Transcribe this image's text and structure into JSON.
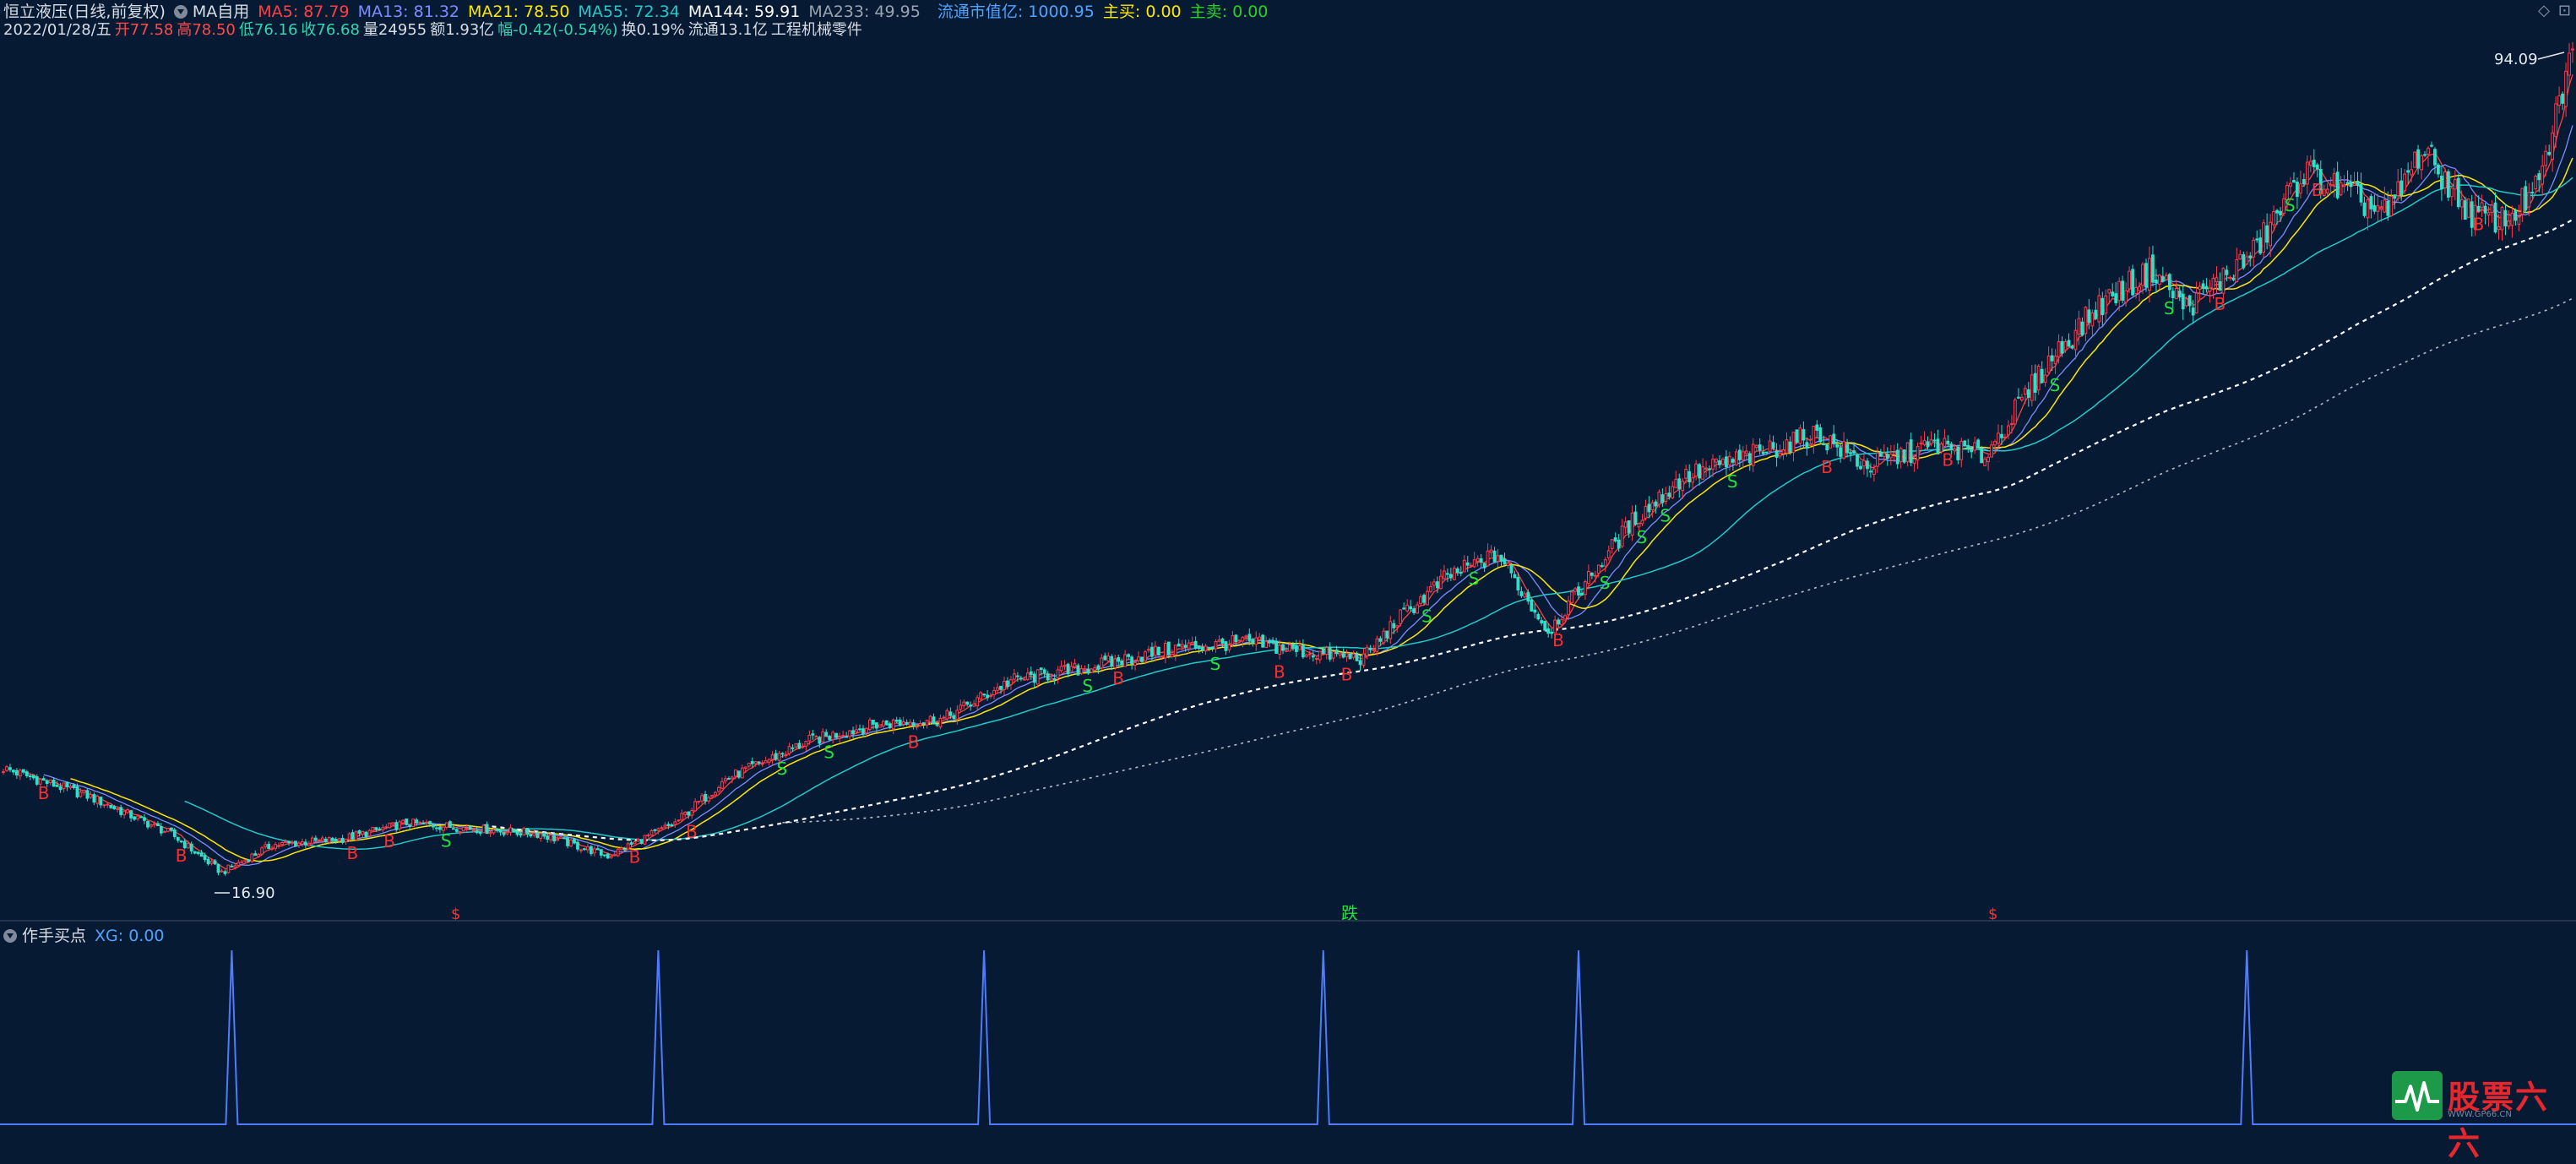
{
  "header": {
    "stock_name": "恒立液压(日线,前复权)",
    "indicator_name": "MA自用",
    "ma_items": [
      {
        "label": "MA5:",
        "value": "87.79",
        "color": "#ff4040"
      },
      {
        "label": "MA13:",
        "value": "81.32",
        "color": "#7f8cff"
      },
      {
        "label": "MA21:",
        "value": "78.50",
        "color": "#ffe600"
      },
      {
        "label": "MA55:",
        "value": "72.34",
        "color": "#23c8c8"
      },
      {
        "label": "MA144:",
        "value": "59.91",
        "color": "#ffffff"
      },
      {
        "label": "MA233:",
        "value": "49.95",
        "color": "#9aa3b0"
      }
    ],
    "market_cap_label": "流通市值亿:",
    "market_cap_value": "1000.95",
    "buy_label": "主买:",
    "buy_value": "0.00",
    "sell_label": "主卖:",
    "sell_value": "0.00"
  },
  "quote": {
    "date": "2022/01/28/五",
    "open": "开77.58",
    "high": "高78.50",
    "low": "低76.16",
    "close": "收76.68",
    "volume": "量24955",
    "amount": "额1.93亿",
    "change": "幅-0.42(-0.54%)",
    "turnover": "换0.19%",
    "float": "流通13.1亿",
    "industry": "工程机械零件"
  },
  "window_controls": {
    "diamond": "◇",
    "restore": "⊡"
  },
  "main_chart_labels": {
    "max_price": "94.09",
    "min_price": "16.90",
    "bottom_marks": [
      "$",
      "跌",
      "$"
    ]
  },
  "sub_panel": {
    "name": "作手买点",
    "xg_label": "XG:",
    "xg_value": "0.00"
  },
  "watermark": {
    "text": "股票六六",
    "sub": "WWW.GP66.CN"
  },
  "chart_data": [
    {
      "type": "candlestick",
      "title": "恒立液压(日线,前复权)",
      "y_range": [
        16.9,
        94.09
      ],
      "anchors": [
        {
          "bar": 0,
          "close": 28.5
        },
        {
          "bar": 25,
          "close": 26.0
        },
        {
          "bar": 50,
          "close": 22.5
        },
        {
          "bar": 65,
          "close": 19.0
        },
        {
          "bar": 80,
          "close": 21.5
        },
        {
          "bar": 100,
          "close": 22.0
        },
        {
          "bar": 120,
          "close": 23.5
        },
        {
          "bar": 140,
          "close": 23.0
        },
        {
          "bar": 160,
          "close": 22.5
        },
        {
          "bar": 180,
          "close": 20.5
        },
        {
          "bar": 200,
          "close": 23.5
        },
        {
          "bar": 215,
          "close": 27.5
        },
        {
          "bar": 240,
          "close": 31.0
        },
        {
          "bar": 260,
          "close": 32.5
        },
        {
          "bar": 280,
          "close": 33.0
        },
        {
          "bar": 300,
          "close": 36.5
        },
        {
          "bar": 320,
          "close": 37.5
        },
        {
          "bar": 350,
          "close": 39.5
        },
        {
          "bar": 370,
          "close": 40.0
        },
        {
          "bar": 390,
          "close": 39.0
        },
        {
          "bar": 405,
          "close": 38.5
        },
        {
          "bar": 415,
          "close": 42.0
        },
        {
          "bar": 430,
          "close": 46.0
        },
        {
          "bar": 445,
          "close": 48.0
        },
        {
          "bar": 460,
          "close": 41.0
        },
        {
          "bar": 470,
          "close": 45.0
        },
        {
          "bar": 485,
          "close": 51.0
        },
        {
          "bar": 500,
          "close": 55.0
        },
        {
          "bar": 520,
          "close": 57.0
        },
        {
          "bar": 540,
          "close": 59.0
        },
        {
          "bar": 555,
          "close": 56.0
        },
        {
          "bar": 575,
          "close": 58.0
        },
        {
          "bar": 590,
          "close": 57.0
        },
        {
          "bar": 610,
          "close": 66.0
        },
        {
          "bar": 625,
          "close": 71.0
        },
        {
          "bar": 640,
          "close": 74.0
        },
        {
          "bar": 650,
          "close": 70.5
        },
        {
          "bar": 670,
          "close": 75.5
        },
        {
          "bar": 685,
          "close": 83.0
        },
        {
          "bar": 700,
          "close": 80.5
        },
        {
          "bar": 710,
          "close": 79.0
        },
        {
          "bar": 720,
          "close": 85.0
        },
        {
          "bar": 735,
          "close": 79.0
        },
        {
          "bar": 745,
          "close": 78.5
        },
        {
          "bar": 755,
          "close": 81.5
        },
        {
          "bar": 765,
          "close": 94.09
        }
      ],
      "bar_count": 766,
      "ma_periods": [
        5,
        13,
        21,
        55,
        144,
        233
      ],
      "buy_signals": [
        12,
        53,
        104,
        115,
        188,
        205,
        271,
        332,
        380,
        400,
        463,
        543,
        579,
        660,
        689,
        737
      ],
      "sell_signals": [
        132,
        232,
        246,
        323,
        361,
        424,
        438,
        477,
        488,
        495,
        515,
        611,
        645,
        681
      ],
      "signal_labels": {
        "buy": "B",
        "sell": "S"
      }
    },
    {
      "type": "line",
      "title": "作手买点",
      "series": [
        {
          "name": "XG",
          "spikes_at_bar": [
            68,
            195,
            292,
            393,
            469,
            668
          ],
          "spike_value": 1,
          "base_value": 0
        }
      ]
    }
  ]
}
